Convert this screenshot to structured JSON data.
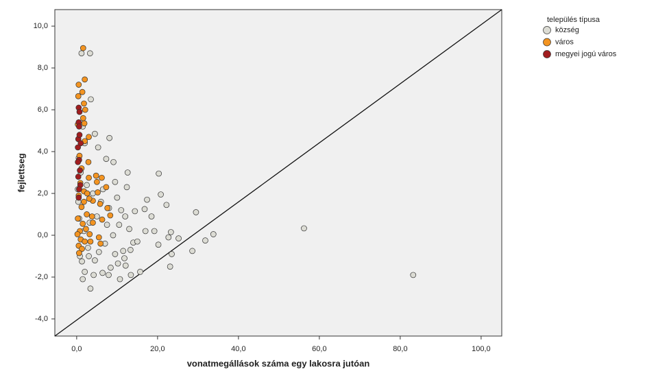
{
  "chart_data": {
    "type": "scatter",
    "x_label": "vonatmegállások száma egy lakosra jutóan",
    "y_label": "fejlettseg",
    "legend_title": "település típusa",
    "legend": "right",
    "xlim": [
      -5.4,
      105.1
    ],
    "ylim": [
      -4.82,
      10.79
    ],
    "xticks": [
      {
        "value": 0,
        "label": "0,0"
      },
      {
        "value": 20,
        "label": "20,0"
      },
      {
        "value": 40,
        "label": "40,0"
      },
      {
        "value": 60,
        "label": "60,0"
      },
      {
        "value": 80,
        "label": "80,0"
      },
      {
        "value": 100,
        "label": "100,0"
      }
    ],
    "yticks": [
      {
        "value": -4,
        "label": "-4,0"
      },
      {
        "value": -2,
        "label": "-2,0"
      },
      {
        "value": 0,
        "label": "0,0"
      },
      {
        "value": 2,
        "label": "2,0"
      },
      {
        "value": 4,
        "label": "4,0"
      },
      {
        "value": 6,
        "label": "6,0"
      },
      {
        "value": 8,
        "label": "8,0"
      },
      {
        "value": 10,
        "label": "10,0"
      }
    ],
    "series": [
      {
        "name": "község",
        "color": "#dcdcd4",
        "x": [
          56.2,
          83.2,
          29.5,
          33.8,
          31.8,
          20.3,
          20.8,
          22.2,
          23.3,
          25.2,
          28.6,
          23.5,
          23.1,
          15.7,
          13.4,
          10.7,
          3.4,
          1.5,
          1.2,
          3.3,
          3.5,
          4.5,
          5.3,
          8.1,
          7.3,
          9.1,
          12.6,
          12.4,
          9.5,
          17.4,
          16.8,
          14.4,
          18.5,
          19.2,
          17.0,
          20.2,
          22.7,
          14.0,
          13.3,
          11.5,
          10.2,
          12.1,
          8.4,
          7.9,
          6.4,
          4.2,
          2.0,
          1.3,
          3.0,
          5.5,
          7.0,
          9.0,
          10.5,
          12.0,
          8.0,
          6.0,
          4.0,
          2.5,
          1.0,
          0.5,
          2.0,
          1.5,
          6.5,
          10.0,
          11.0,
          13.0,
          15.0,
          4.5,
          2.8,
          1.8,
          3.2,
          5.0,
          7.5,
          9.5,
          11.8,
          0.8,
          0.6,
          0.4,
          0.3
        ],
        "values": [
          0.33,
          -1.9,
          1.1,
          0.05,
          -0.25,
          2.95,
          1.95,
          1.45,
          0.15,
          -0.15,
          -0.75,
          -0.9,
          -1.5,
          -1.75,
          -1.9,
          -2.1,
          -2.55,
          -2.1,
          8.7,
          8.7,
          6.5,
          4.85,
          4.2,
          4.65,
          3.65,
          3.5,
          3.0,
          2.3,
          2.55,
          1.7,
          1.25,
          1.15,
          0.9,
          0.2,
          0.2,
          -0.45,
          -0.1,
          -0.35,
          -0.7,
          -0.75,
          -1.35,
          -1.45,
          -1.55,
          -1.9,
          -1.8,
          -1.9,
          -1.75,
          -1.25,
          -1.0,
          -0.8,
          -0.4,
          0.0,
          0.5,
          0.9,
          1.3,
          1.6,
          2.0,
          2.4,
          3.0,
          3.7,
          4.4,
          5.2,
          2.2,
          1.8,
          1.2,
          0.3,
          -0.3,
          -1.2,
          -0.6,
          0.2,
          0.6,
          0.9,
          0.5,
          -0.9,
          -1.1,
          -1.0,
          0.8,
          1.6,
          2.2
        ]
      },
      {
        "name": "város",
        "color": "#f39421",
        "x": [
          1.6,
          2.0,
          0.5,
          1.4,
          0.4,
          1.8,
          2.1,
          1.6,
          1.9,
          3.0,
          0.3,
          2.0,
          0.7,
          1.2,
          2.9,
          4.8,
          6.2,
          5.0,
          7.3,
          3.0,
          5.2,
          1.8,
          0.5,
          4.0,
          3.1,
          5.8,
          7.6,
          1.2,
          2.5,
          3.8,
          8.3,
          6.3,
          0.3,
          1.5,
          4.0,
          2.3,
          0.8,
          3.2,
          5.5,
          0.2,
          1.0,
          2.0,
          3.4,
          5.9,
          0.5,
          1.3,
          0.6,
          1.8,
          0.9,
          2.6
        ],
        "values": [
          8.95,
          7.45,
          7.2,
          6.85,
          6.65,
          6.3,
          6.0,
          5.6,
          5.35,
          4.7,
          5.3,
          4.5,
          3.8,
          3.2,
          3.5,
          2.85,
          2.75,
          2.55,
          2.3,
          2.75,
          2.05,
          2.1,
          1.9,
          1.65,
          1.75,
          1.5,
          1.3,
          1.35,
          1.0,
          0.9,
          0.95,
          0.75,
          0.8,
          0.55,
          0.6,
          0.3,
          0.2,
          0.05,
          -0.1,
          0.05,
          -0.2,
          -0.3,
          -0.3,
          -0.4,
          -0.5,
          -0.65,
          -0.85,
          1.6,
          2.5,
          2.0
        ]
      },
      {
        "name": "megyei jogú város",
        "color": "#a11d1f",
        "x": [
          0.5,
          0.7,
          0.5,
          0.6,
          0.4,
          1.0,
          0.3,
          0.6,
          0.3,
          0.8,
          0.4,
          0.9,
          0.6,
          0.5,
          0.7
        ],
        "values": [
          6.1,
          5.9,
          5.4,
          5.2,
          4.6,
          4.4,
          4.2,
          3.6,
          3.5,
          3.1,
          2.8,
          2.4,
          2.2,
          1.8,
          4.8
        ]
      }
    ]
  }
}
